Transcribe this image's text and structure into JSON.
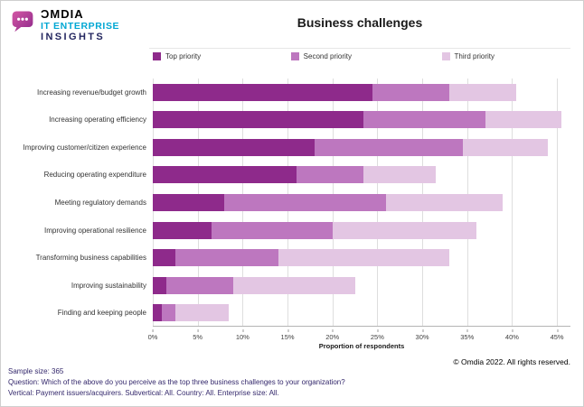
{
  "logo": {
    "brand": "ƆMDIA",
    "line1": "IT ENTERPRISE",
    "line2": "INSIGHTS"
  },
  "title": "Business challenges",
  "chart_data": {
    "type": "bar",
    "orientation": "horizontal",
    "stacked": true,
    "title": "Business challenges",
    "xlabel": "Proportion of respondents",
    "ylabel": "",
    "xlim": [
      0,
      46.5
    ],
    "x_ticks": [
      "0%",
      "5%",
      "10%",
      "15%",
      "20%",
      "25%",
      "30%",
      "35%",
      "40%",
      "45%"
    ],
    "grid": true,
    "legend_position": "top",
    "categories": [
      "Increasing revenue/budget growth",
      "Increasing operating efficiency",
      "Improving customer/citizen experience",
      "Reducing operating expenditure",
      "Meeting regulatory demands",
      "Improving operational resilience",
      "Transforming business capabilities",
      "Improving sustainability",
      "Finding and keeping people"
    ],
    "series": [
      {
        "name": "Top priority",
        "color": "#8e2a8b",
        "values": [
          24.5,
          23.5,
          18.0,
          16.0,
          8.0,
          6.5,
          2.5,
          1.5,
          1.0
        ]
      },
      {
        "name": "Second priority",
        "color": "#bd77bf",
        "values": [
          8.5,
          13.5,
          16.5,
          7.5,
          18.0,
          13.5,
          11.5,
          7.5,
          1.5
        ]
      },
      {
        "name": "Third priority",
        "color": "#e3c6e3",
        "values": [
          7.5,
          8.5,
          9.5,
          8.0,
          13.0,
          16.0,
          19.0,
          13.5,
          6.0
        ]
      }
    ]
  },
  "footer": {
    "copyright": "© Omdia 2022. All rights reserved.",
    "lines": [
      "Sample size: 365",
      "Question: Which of the above do you perceive as the top three business challenges to your organization?",
      "Vertical: Payment issuers/acquirers. Subvertical: All. Country: All. Enterprise size: All."
    ]
  },
  "colors": {
    "top_priority": "#8e2a8b",
    "second_priority": "#bd77bf",
    "third_priority": "#e3c6e3",
    "logo_teal": "#00a7d3",
    "logo_navy": "#23265f",
    "logo_magenta": "#b9439c",
    "footnote_text": "#33276b",
    "gridline": "#dedede"
  }
}
